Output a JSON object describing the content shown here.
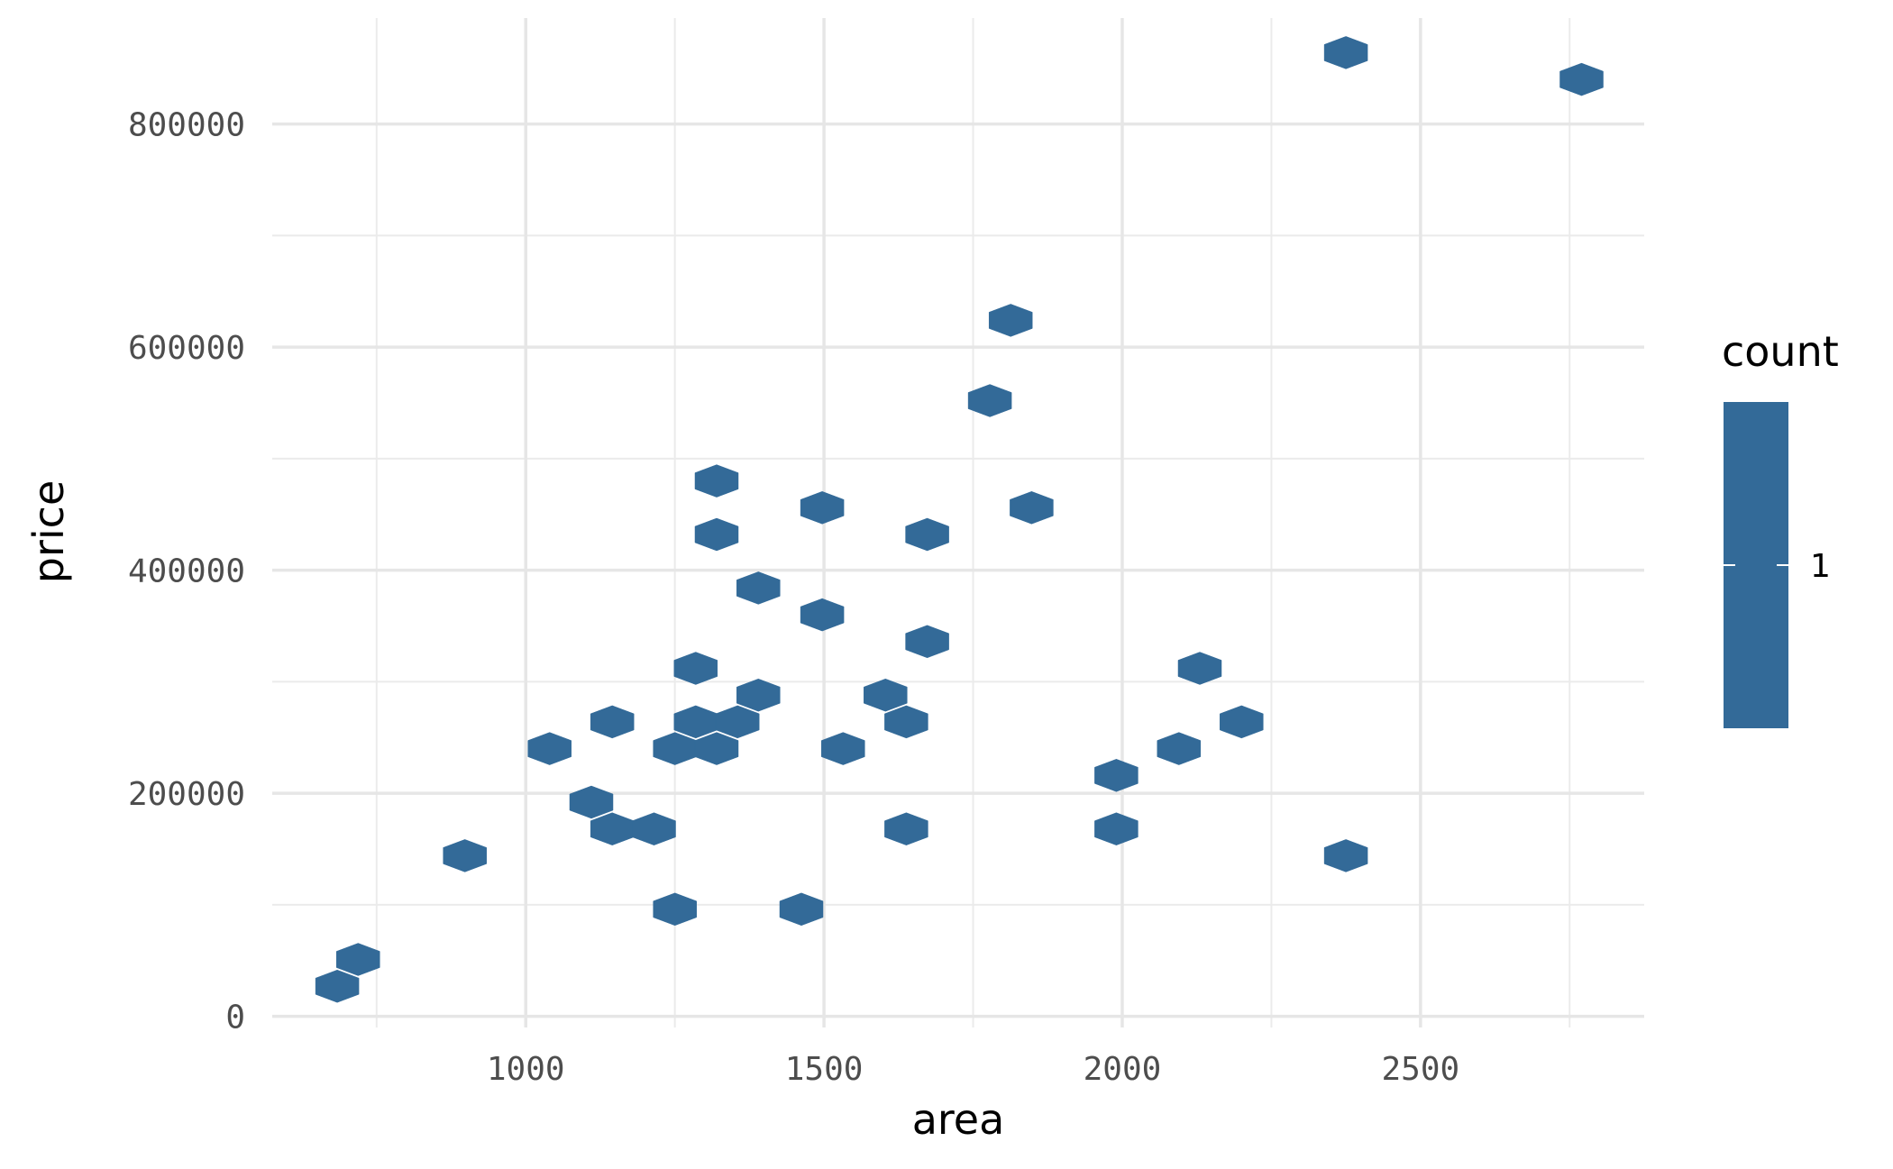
{
  "chart_data": {
    "type": "hexbin",
    "xlabel": "area",
    "ylabel": "price",
    "xlim": [
      575,
      2875
    ],
    "ylim": [
      -10000,
      895000
    ],
    "x_ticks": [
      1000,
      1500,
      2000,
      2500
    ],
    "x_minor_ticks": [
      750,
      1250,
      1750,
      2250,
      2750
    ],
    "y_ticks": [
      0,
      200000,
      400000,
      600000,
      800000
    ],
    "y_minor_ticks": [
      100000,
      300000,
      500000,
      700000
    ],
    "grid": true,
    "fill_color": "#336a98",
    "legend": {
      "title": "count",
      "labels": [
        "1"
      ],
      "position": "right"
    },
    "points": [
      {
        "x": 684,
        "y": 27000
      },
      {
        "x": 719,
        "y": 51000
      },
      {
        "x": 898,
        "y": 144000
      },
      {
        "x": 1040,
        "y": 240000
      },
      {
        "x": 1110,
        "y": 192000
      },
      {
        "x": 1145,
        "y": 168000
      },
      {
        "x": 1145,
        "y": 264000
      },
      {
        "x": 1215,
        "y": 168000
      },
      {
        "x": 1250,
        "y": 96000
      },
      {
        "x": 1250,
        "y": 240000
      },
      {
        "x": 1285,
        "y": 264000
      },
      {
        "x": 1285,
        "y": 312000
      },
      {
        "x": 1320,
        "y": 240000
      },
      {
        "x": 1320,
        "y": 432000
      },
      {
        "x": 1320,
        "y": 480000
      },
      {
        "x": 1355,
        "y": 264000
      },
      {
        "x": 1390,
        "y": 288000
      },
      {
        "x": 1390,
        "y": 384000
      },
      {
        "x": 1462,
        "y": 96000
      },
      {
        "x": 1497,
        "y": 360000
      },
      {
        "x": 1497,
        "y": 456000
      },
      {
        "x": 1532,
        "y": 240000
      },
      {
        "x": 1603,
        "y": 288000
      },
      {
        "x": 1638,
        "y": 168000
      },
      {
        "x": 1638,
        "y": 264000
      },
      {
        "x": 1673,
        "y": 336000
      },
      {
        "x": 1673,
        "y": 432000
      },
      {
        "x": 1778,
        "y": 552000
      },
      {
        "x": 1813,
        "y": 624000
      },
      {
        "x": 1848,
        "y": 456000
      },
      {
        "x": 1990,
        "y": 168000
      },
      {
        "x": 1990,
        "y": 216000
      },
      {
        "x": 2095,
        "y": 240000
      },
      {
        "x": 2130,
        "y": 312000
      },
      {
        "x": 2200,
        "y": 264000
      },
      {
        "x": 2375,
        "y": 144000
      },
      {
        "x": 2375,
        "y": 864000
      },
      {
        "x": 2770,
        "y": 840000
      }
    ]
  }
}
